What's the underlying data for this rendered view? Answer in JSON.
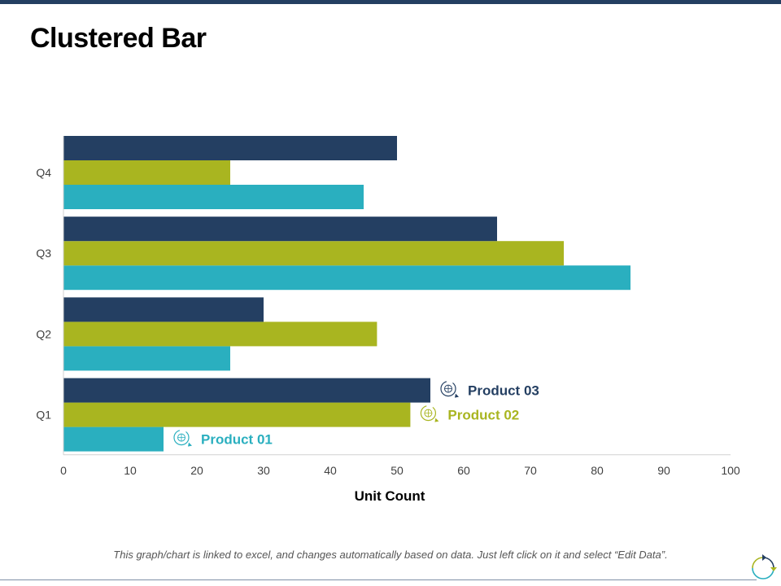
{
  "page": {
    "title": "Clustered Bar",
    "footer_note": "This graph/chart is linked to excel, and changes automatically based on data.  Just left click on it and select “Edit Data”."
  },
  "colors": {
    "topbar": "#243f62",
    "product01": "#2aafbf",
    "product02": "#a9b520",
    "product03": "#243f62",
    "axis": "#d0d0d0"
  },
  "icons": {
    "series_marker": "refresh-cycle-icon",
    "corner": "refresh-arrows-icon"
  },
  "chart_data": {
    "type": "bar",
    "orientation": "horizontal",
    "title": "",
    "categories": [
      "Q1",
      "Q2",
      "Q3",
      "Q4"
    ],
    "series": [
      {
        "name": "Product 01",
        "values": [
          15,
          25,
          85,
          45
        ],
        "color": "#2aafbf"
      },
      {
        "name": "Product 02",
        "values": [
          52,
          47,
          75,
          25
        ],
        "color": "#a9b520"
      },
      {
        "name": "Product 03",
        "values": [
          55,
          30,
          65,
          50
        ],
        "color": "#243f62"
      }
    ],
    "xlabel": "Unit Count",
    "ylabel": "",
    "xlim": [
      0,
      100
    ],
    "xticks": [
      "0",
      "10",
      "20",
      "30",
      "40",
      "50",
      "60",
      "70",
      "80",
      "90",
      "100"
    ],
    "grid": false,
    "legend": "data labels on Q1 bars"
  }
}
